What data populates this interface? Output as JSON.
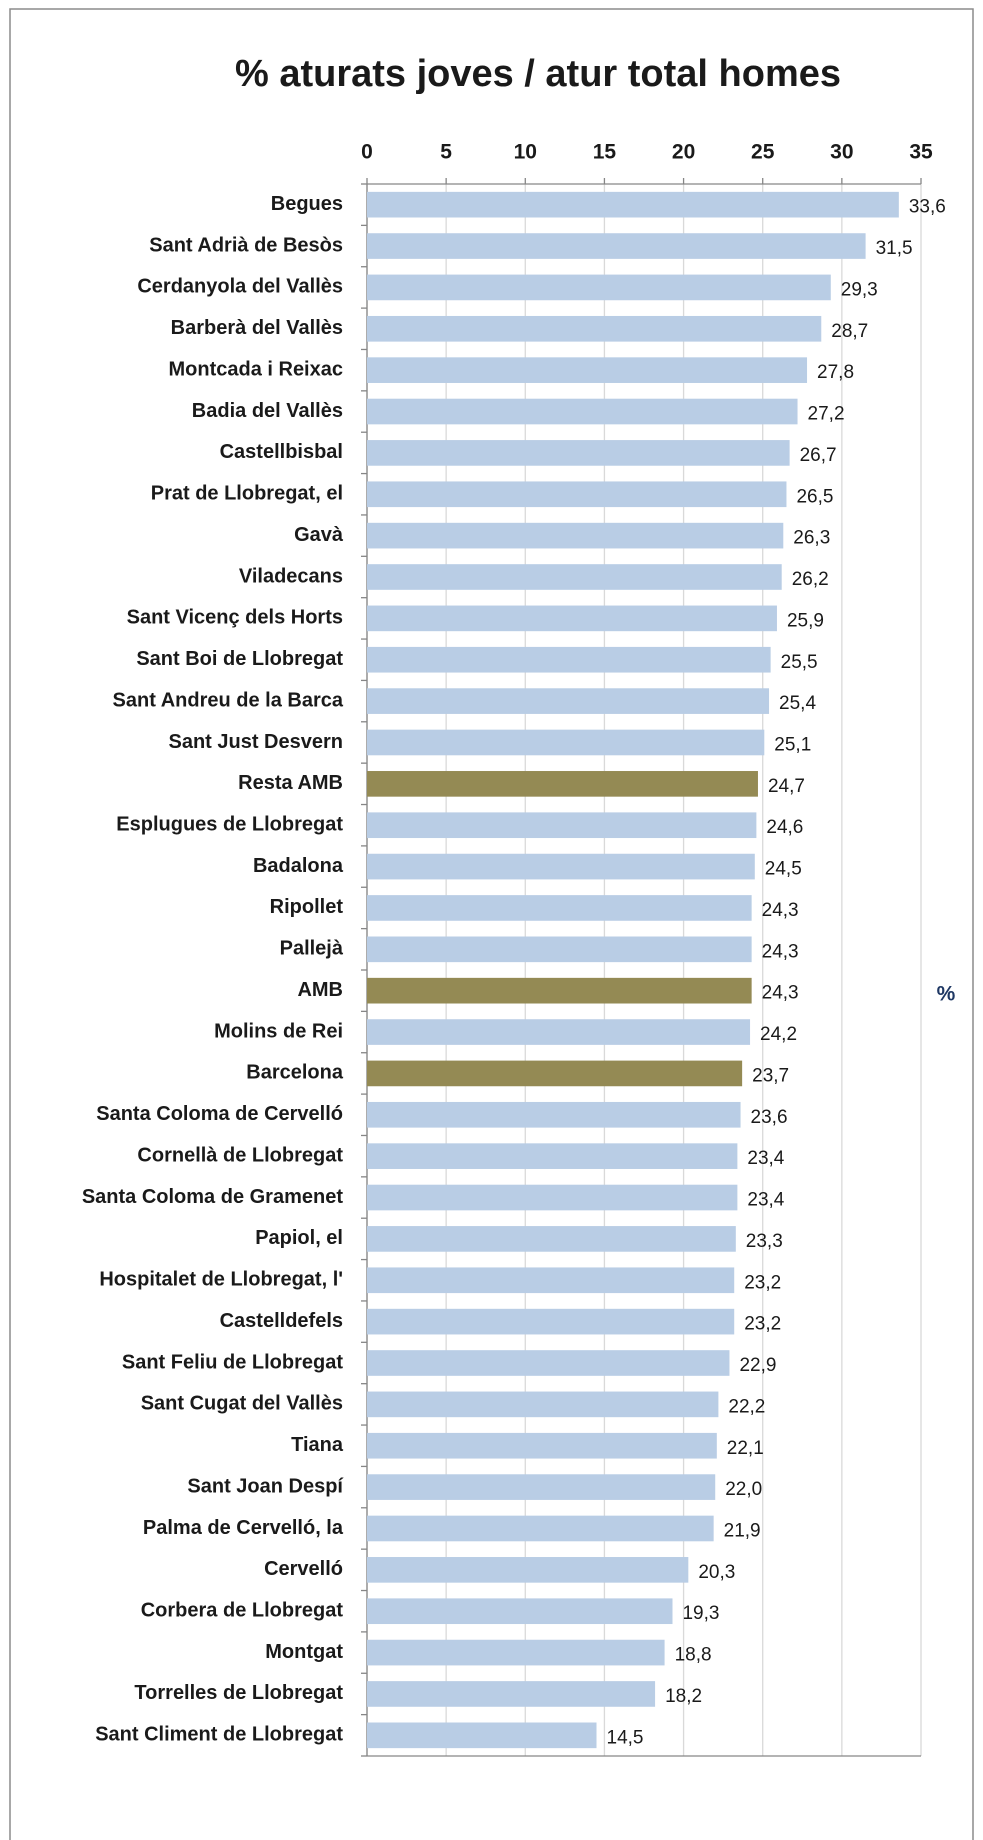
{
  "chart_data": {
    "type": "barh",
    "title": "%  aturats joves / atur total homes",
    "xlabel": "%",
    "categories": [
      "Begues",
      "Sant Adrià de Besòs",
      "Cerdanyola del Vallès",
      "Barberà del Vallès",
      "Montcada i Reixac",
      "Badia del Vallès",
      "Castellbisbal",
      "Prat de Llobregat, el",
      "Gavà",
      "Viladecans",
      "Sant Vicenç dels Horts",
      "Sant Boi de Llobregat",
      "Sant Andreu de la Barca",
      "Sant Just Desvern",
      "Resta AMB",
      "Esplugues de Llobregat",
      "Badalona",
      "Ripollet",
      "Pallejà",
      "AMB",
      "Molins de Rei",
      "Barcelona",
      "Santa Coloma de Cervelló",
      "Cornellà de Llobregat",
      "Santa Coloma de Gramenet",
      "Papiol, el",
      "Hospitalet de Llobregat, l'",
      "Castelldefels",
      "Sant Feliu de Llobregat",
      "Sant Cugat del Vallès",
      "Tiana",
      "Sant Joan Despí",
      "Palma de Cervelló, la",
      "Cervelló",
      "Corbera de Llobregat",
      "Montgat",
      "Torrelles de Llobregat",
      "Sant Climent de Llobregat"
    ],
    "values": [
      33.6,
      31.5,
      29.3,
      28.7,
      27.8,
      27.2,
      26.7,
      26.5,
      26.3,
      26.2,
      25.9,
      25.5,
      25.4,
      25.1,
      24.7,
      24.6,
      24.5,
      24.3,
      24.3,
      24.3,
      24.2,
      23.7,
      23.6,
      23.4,
      23.4,
      23.3,
      23.2,
      23.2,
      22.9,
      22.2,
      22.1,
      22.0,
      21.9,
      20.3,
      19.3,
      18.8,
      18.2,
      14.5
    ],
    "value_labels": [
      "33,6",
      "31,5",
      "29,3",
      "28,7",
      "27,8",
      "27,2",
      "26,7",
      "26,5",
      "26,3",
      "26,2",
      "25,9",
      "25,5",
      "25,4",
      "25,1",
      "24,7",
      "24,6",
      "24,5",
      "24,3",
      "24,3",
      "24,3",
      "24,2",
      "23,7",
      "23,6",
      "23,4",
      "23,4",
      "23,3",
      "23,2",
      "23,2",
      "22,9",
      "22,2",
      "22,1",
      "22,0",
      "21,9",
      "20,3",
      "19,3",
      "18,8",
      "18,2",
      "14,5"
    ],
    "colors": [
      "#b9cde5",
      "#b9cde5",
      "#b9cde5",
      "#b9cde5",
      "#b9cde5",
      "#b9cde5",
      "#b9cde5",
      "#b9cde5",
      "#b9cde5",
      "#b9cde5",
      "#b9cde5",
      "#b9cde5",
      "#b9cde5",
      "#b9cde5",
      "#948a54",
      "#b9cde5",
      "#b9cde5",
      "#b9cde5",
      "#b9cde5",
      "#948a54",
      "#b9cde5",
      "#948a54",
      "#b9cde5",
      "#b9cde5",
      "#b9cde5",
      "#b9cde5",
      "#b9cde5",
      "#b9cde5",
      "#b9cde5",
      "#b9cde5",
      "#b9cde5",
      "#b9cde5",
      "#b9cde5",
      "#b9cde5",
      "#b9cde5",
      "#b9cde5",
      "#b9cde5",
      "#b9cde5"
    ],
    "xlim": [
      0,
      35
    ],
    "xticks": [
      0,
      5,
      10,
      15,
      20,
      25,
      30,
      35
    ],
    "grid": true
  }
}
